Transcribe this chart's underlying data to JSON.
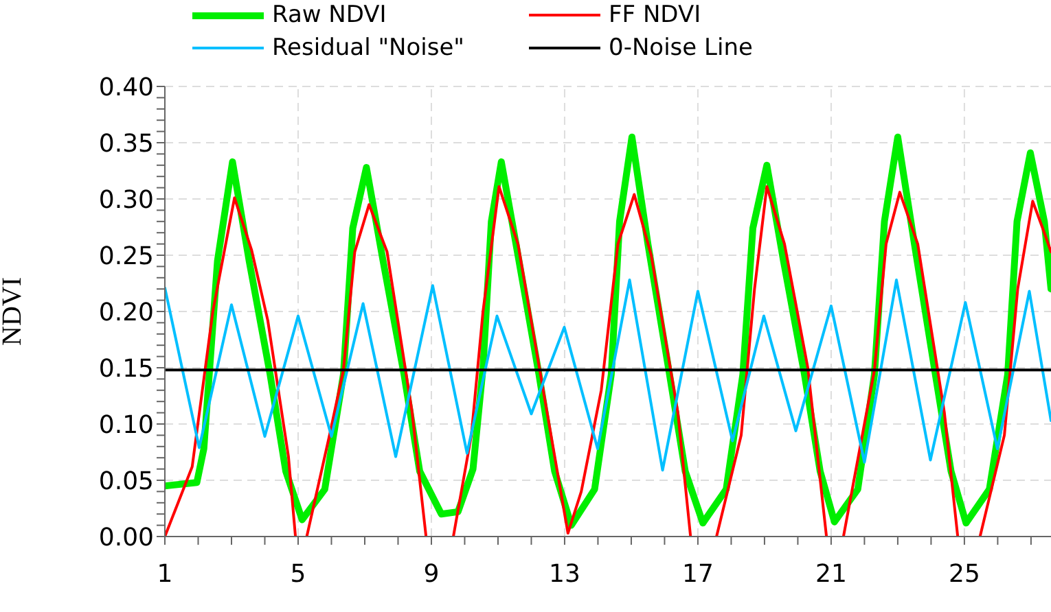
{
  "chart_data": {
    "type": "line",
    "ylabel": "NDVI",
    "xlim": [
      1,
      27.6
    ],
    "ylim": [
      0,
      0.4
    ],
    "xticks": [
      1,
      {
        "value": 2,
        "label": null
      },
      {
        "value": 3,
        "label": null
      },
      {
        "value": 4,
        "label": null
      },
      5,
      {
        "value": 6,
        "label": null
      },
      {
        "value": 7,
        "label": null
      },
      {
        "value": 8,
        "label": null
      },
      9,
      {
        "value": 10,
        "label": null
      },
      {
        "value": 11,
        "label": null
      },
      {
        "value": 12,
        "label": null
      },
      13,
      {
        "value": 14,
        "label": null
      },
      {
        "value": 15,
        "label": null
      },
      {
        "value": 16,
        "label": null
      },
      17,
      {
        "value": 18,
        "label": null
      },
      {
        "value": 19,
        "label": null
      },
      {
        "value": 20,
        "label": null
      },
      21,
      {
        "value": 22,
        "label": null
      },
      {
        "value": 23,
        "label": null
      },
      {
        "value": 24,
        "label": null
      },
      25,
      {
        "value": 26,
        "label": null
      },
      {
        "value": 27,
        "label": null
      }
    ],
    "yticks": [
      {
        "value": 0,
        "label": "0.00"
      },
      {
        "value": 0.01,
        "label": null
      },
      {
        "value": 0.02,
        "label": null
      },
      {
        "value": 0.03,
        "label": null
      },
      {
        "value": 0.04,
        "label": null
      },
      {
        "value": 0.05,
        "label": "0.05"
      },
      {
        "value": 0.06,
        "label": null
      },
      {
        "value": 0.07,
        "label": null
      },
      {
        "value": 0.08,
        "label": null
      },
      {
        "value": 0.09,
        "label": null
      },
      {
        "value": 0.1,
        "label": "0.10"
      },
      {
        "value": 0.11,
        "label": null
      },
      {
        "value": 0.12,
        "label": null
      },
      {
        "value": 0.13,
        "label": null
      },
      {
        "value": 0.14,
        "label": null
      },
      {
        "value": 0.15,
        "label": "0.15"
      },
      {
        "value": 0.16,
        "label": null
      },
      {
        "value": 0.17,
        "label": null
      },
      {
        "value": 0.18,
        "label": null
      },
      {
        "value": 0.19,
        "label": null
      },
      {
        "value": 0.2,
        "label": "0.20"
      },
      {
        "value": 0.21,
        "label": null
      },
      {
        "value": 0.22,
        "label": null
      },
      {
        "value": 0.23,
        "label": null
      },
      {
        "value": 0.24,
        "label": null
      },
      {
        "value": 0.25,
        "label": "0.25"
      },
      {
        "value": 0.26,
        "label": null
      },
      {
        "value": 0.27,
        "label": null
      },
      {
        "value": 0.28,
        "label": null
      },
      {
        "value": 0.29,
        "label": null
      },
      {
        "value": 0.3,
        "label": "0.30"
      },
      {
        "value": 0.31,
        "label": null
      },
      {
        "value": 0.32,
        "label": null
      },
      {
        "value": 0.33,
        "label": null
      },
      {
        "value": 0.34,
        "label": null
      },
      {
        "value": 0.35,
        "label": "0.35"
      },
      {
        "value": 0.36,
        "label": null
      },
      {
        "value": 0.37,
        "label": null
      },
      {
        "value": 0.38,
        "label": null
      },
      {
        "value": 0.39,
        "label": null
      },
      {
        "value": 0.4,
        "label": "0.40"
      }
    ],
    "grid": true,
    "legend": "top",
    "line_style": "solid",
    "marker": "none",
    "series": [
      {
        "name": "Raw NDVI",
        "color": "#00ee00",
        "x": [
          1,
          1.96,
          2.17,
          2.58,
          3.03,
          3.53,
          4.16,
          4.63,
          5.12,
          5.8,
          6.36,
          6.64,
          7.05,
          7.55,
          8.18,
          8.65,
          9.3,
          9.8,
          10.25,
          10.55,
          10.8,
          11.1,
          11.6,
          12.23,
          12.7,
          13.2,
          13.9,
          14.4,
          14.65,
          15.02,
          15.5,
          16.15,
          16.62,
          17.15,
          17.85,
          18.35,
          18.65,
          19.07,
          19.57,
          20.2,
          20.67,
          21.1,
          21.8,
          22.3,
          22.6,
          23.0,
          23.5,
          24.13,
          24.6,
          25.05,
          25.75,
          26.3,
          26.58,
          26.98,
          27.4,
          27.6
        ],
        "values": [
          0.045,
          0.048,
          0.078,
          0.245,
          0.333,
          0.245,
          0.144,
          0.058,
          0.015,
          0.042,
          0.144,
          0.274,
          0.328,
          0.245,
          0.144,
          0.058,
          0.02,
          0.022,
          0.06,
          0.15,
          0.28,
          0.333,
          0.25,
          0.144,
          0.058,
          0.01,
          0.042,
          0.144,
          0.28,
          0.355,
          0.26,
          0.144,
          0.058,
          0.012,
          0.042,
          0.144,
          0.274,
          0.33,
          0.245,
          0.144,
          0.058,
          0.013,
          0.042,
          0.144,
          0.28,
          0.355,
          0.26,
          0.144,
          0.058,
          0.012,
          0.042,
          0.144,
          0.28,
          0.341,
          0.28,
          0.22
        ]
      },
      {
        "name": "FF NDVI",
        "color": "#ff0000",
        "x": [
          1,
          1.82,
          2.44,
          3.09,
          3.6,
          4.09,
          4.71,
          4.92,
          5.1,
          5.26,
          5.95,
          6.36,
          6.7,
          7.13,
          7.67,
          8.42,
          8.84,
          9.2,
          9.66,
          10.2,
          10.55,
          11.03,
          11.6,
          12.3,
          13.1,
          13.5,
          14.1,
          14.6,
          15.09,
          15.6,
          16.4,
          16.78,
          17.2,
          17.56,
          18.3,
          18.7,
          19.07,
          19.6,
          20.3,
          20.86,
          21.1,
          21.37,
          22.3,
          22.65,
          23.06,
          23.6,
          24.4,
          24.8,
          25.1,
          25.47,
          26.2,
          26.6,
          27.05,
          27.4,
          27.6
        ],
        "values": [
          0,
          0.062,
          0.2,
          0.301,
          0.255,
          0.192,
          0.071,
          0,
          null,
          0,
          0.091,
          0.148,
          0.253,
          0.295,
          0.253,
          0.111,
          0,
          null,
          0,
          0.09,
          0.2,
          0.311,
          0.26,
          0.14,
          0.003,
          0.04,
          0.13,
          0.26,
          0.304,
          0.25,
          0.11,
          0,
          null,
          0,
          0.09,
          0.22,
          0.311,
          0.26,
          0.15,
          0,
          null,
          0,
          0.148,
          0.26,
          0.306,
          0.26,
          0.11,
          0,
          null,
          0,
          0.09,
          0.22,
          0.298,
          0.27,
          0.253
        ]
      },
      {
        "name": "Residual \"Noise\"",
        "color": "#00bfff",
        "x": [
          1,
          2.03,
          3.0,
          4.0,
          5.0,
          6.0,
          6.95,
          7.93,
          9.04,
          10.07,
          10.97,
          12.0,
          12.99,
          13.99,
          14.95,
          15.94,
          17.0,
          18.04,
          18.98,
          19.94,
          21.0,
          22.0,
          22.96,
          23.98,
          25.03,
          25.99,
          26.95,
          27.6
        ],
        "values": [
          0.221,
          0.079,
          0.206,
          0.089,
          0.196,
          0.089,
          0.207,
          0.071,
          0.223,
          0.074,
          0.196,
          0.109,
          0.186,
          0.078,
          0.228,
          0.059,
          0.218,
          0.085,
          0.196,
          0.094,
          0.205,
          0.066,
          0.228,
          0.068,
          0.208,
          0.078,
          0.218,
          0.103
        ]
      },
      {
        "name": "0-Noise Line",
        "color": "#000000",
        "x": [
          1,
          27.6
        ],
        "values": [
          0.148,
          0.148
        ]
      }
    ]
  }
}
